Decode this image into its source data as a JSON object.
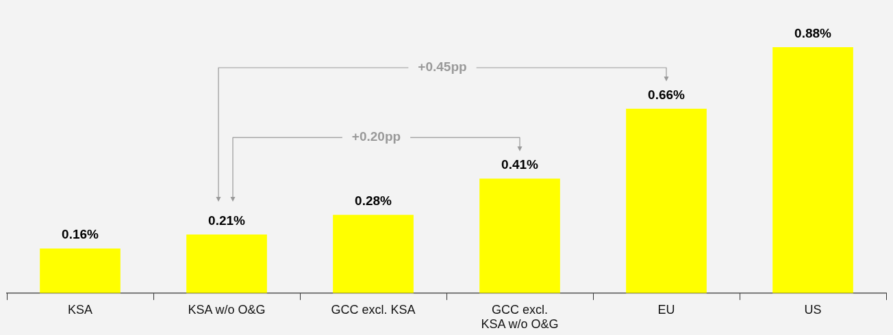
{
  "chart_data": {
    "type": "bar",
    "categories": [
      "KSA",
      "KSA w/o O&G",
      "GCC excl. KSA",
      "GCC excl. KSA w/o O&G",
      "EU",
      "US"
    ],
    "values": [
      0.16,
      0.21,
      0.28,
      0.41,
      0.66,
      0.88
    ],
    "value_labels": [
      "0.16%",
      "0.21%",
      "0.28%",
      "0.41%",
      "0.66%",
      "0.88%"
    ],
    "color": "#ffff00",
    "grid": false,
    "legend": false,
    "annotations": [
      "+0.45pp",
      "+0.20pp"
    ]
  }
}
